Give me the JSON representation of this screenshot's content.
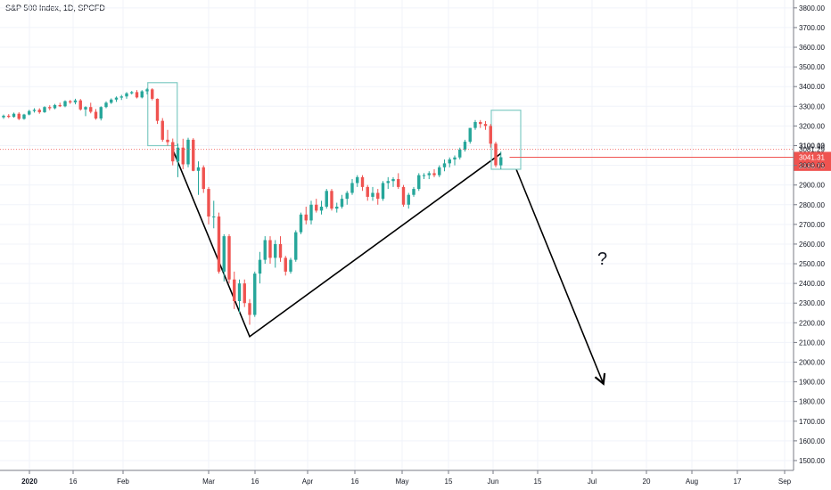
{
  "chart_data": {
    "type": "candlestick",
    "title": "S&P 500 Index, 1D, SPCFD",
    "ylim": [
      1450,
      3840
    ],
    "y_ticks": [
      1500,
      1600,
      1700,
      1800,
      1900,
      2000,
      2100,
      2200,
      2300,
      2400,
      2500,
      2600,
      2700,
      2800,
      2900,
      3000,
      3100,
      3200,
      3300,
      3400,
      3500,
      3600,
      3700,
      3800
    ],
    "y_tick_labels": [
      "1500.00",
      "1600.00",
      "1700.00",
      "1800.00",
      "1900.00",
      "2000.00",
      "2100.00",
      "2200.00",
      "2300.00",
      "2400.00",
      "2500.00",
      "2600.00",
      "2700.00",
      "2800.00",
      "2900.00",
      "3000.00",
      "3100.00",
      "3200.00",
      "3300.00",
      "3400.00",
      "3500.00",
      "3600.00",
      "3700.00",
      "3800.00"
    ],
    "x_labels": [
      "2020",
      "16",
      "Feb",
      "Mar",
      "16",
      "Apr",
      "16",
      "May",
      "15",
      "Jun",
      "15",
      "Jul",
      "20",
      "Aug",
      "17",
      "Sep"
    ],
    "grid": true,
    "up_color": "#26a69a",
    "down_color": "#ef5350",
    "price_lines": [
      {
        "value": 3081.29,
        "label": "3081.29",
        "color": "#ef5350",
        "style": "dotted"
      },
      {
        "value": 3041.31,
        "label": "3041.31",
        "color": "#ef5350",
        "style": "solid"
      },
      {
        "value": 2998.75,
        "label": "2998.75",
        "color": "#ef5350",
        "style": "tag"
      }
    ],
    "highlight_label": "3100.13",
    "annotation": "?",
    "candles": [
      [
        3244,
        3258,
        3236,
        3252
      ],
      [
        3252,
        3260,
        3240,
        3246
      ],
      [
        3246,
        3268,
        3242,
        3262
      ],
      [
        3262,
        3270,
        3230,
        3236
      ],
      [
        3236,
        3262,
        3232,
        3258
      ],
      [
        3258,
        3282,
        3254,
        3276
      ],
      [
        3276,
        3290,
        3268,
        3282
      ],
      [
        3282,
        3290,
        3262,
        3270
      ],
      [
        3270,
        3300,
        3266,
        3296
      ],
      [
        3296,
        3305,
        3280,
        3290
      ],
      [
        3290,
        3312,
        3285,
        3306
      ],
      [
        3306,
        3318,
        3296,
        3300
      ],
      [
        3300,
        3330,
        3295,
        3326
      ],
      [
        3326,
        3332,
        3312,
        3320
      ],
      [
        3320,
        3338,
        3310,
        3330
      ],
      [
        3330,
        3337,
        3278,
        3284
      ],
      [
        3284,
        3300,
        3250,
        3296
      ],
      [
        3296,
        3318,
        3264,
        3272
      ],
      [
        3272,
        3286,
        3232,
        3238
      ],
      [
        3238,
        3300,
        3228,
        3296
      ],
      [
        3296,
        3325,
        3290,
        3318
      ],
      [
        3318,
        3340,
        3312,
        3334
      ],
      [
        3334,
        3350,
        3322,
        3344
      ],
      [
        3344,
        3358,
        3332,
        3350
      ],
      [
        3350,
        3372,
        3338,
        3366
      ],
      [
        3366,
        3378,
        3360,
        3372
      ],
      [
        3372,
        3382,
        3340,
        3345
      ],
      [
        3345,
        3382,
        3340,
        3376
      ],
      [
        3376,
        3393,
        3360,
        3386
      ],
      [
        3386,
        3392,
        3330,
        3338
      ],
      [
        3338,
        3340,
        3210,
        3226
      ],
      [
        3226,
        3240,
        3120,
        3130
      ],
      [
        3130,
        3180,
        3100,
        3118
      ],
      [
        3118,
        3136,
        3000,
        3020
      ],
      [
        3020,
        3110,
        2940,
        3090
      ],
      [
        3090,
        3135,
        2980,
        3005
      ],
      [
        3005,
        3140,
        2990,
        3130
      ],
      [
        3130,
        3138,
        2970,
        2972
      ],
      [
        2972,
        3020,
        2850,
        2990
      ],
      [
        2990,
        3000,
        2860,
        2880
      ],
      [
        2880,
        2890,
        2700,
        2740
      ],
      [
        2740,
        2820,
        2680,
        2740
      ],
      [
        2740,
        2760,
        2450,
        2460
      ],
      [
        2460,
        2650,
        2410,
        2640
      ],
      [
        2640,
        2650,
        2400,
        2420
      ],
      [
        2420,
        2460,
        2270,
        2310
      ],
      [
        2310,
        2420,
        2250,
        2400
      ],
      [
        2400,
        2420,
        2280,
        2300
      ],
      [
        2300,
        2320,
        2190,
        2240
      ],
      [
        2240,
        2460,
        2230,
        2450
      ],
      [
        2450,
        2560,
        2400,
        2520
      ],
      [
        2520,
        2640,
        2500,
        2620
      ],
      [
        2620,
        2640,
        2500,
        2530
      ],
      [
        2530,
        2620,
        2480,
        2600
      ],
      [
        2600,
        2640,
        2510,
        2530
      ],
      [
        2530,
        2540,
        2440,
        2460
      ],
      [
        2460,
        2530,
        2450,
        2520
      ],
      [
        2520,
        2670,
        2510,
        2660
      ],
      [
        2660,
        2760,
        2650,
        2750
      ],
      [
        2750,
        2790,
        2700,
        2720
      ],
      [
        2720,
        2820,
        2700,
        2800
      ],
      [
        2800,
        2830,
        2760,
        2770
      ],
      [
        2770,
        2820,
        2750,
        2790
      ],
      [
        2790,
        2880,
        2780,
        2870
      ],
      [
        2870,
        2880,
        2770,
        2780
      ],
      [
        2780,
        2810,
        2760,
        2790
      ],
      [
        2790,
        2850,
        2780,
        2830
      ],
      [
        2830,
        2870,
        2800,
        2860
      ],
      [
        2860,
        2930,
        2850,
        2910
      ],
      [
        2910,
        2950,
        2890,
        2940
      ],
      [
        2940,
        2950,
        2870,
        2890
      ],
      [
        2890,
        2900,
        2820,
        2840
      ],
      [
        2840,
        2890,
        2820,
        2860
      ],
      [
        2860,
        2880,
        2800,
        2830
      ],
      [
        2830,
        2920,
        2820,
        2910
      ],
      [
        2910,
        2940,
        2880,
        2920
      ],
      [
        2920,
        2940,
        2890,
        2930
      ],
      [
        2930,
        2960,
        2880,
        2890
      ],
      [
        2890,
        2900,
        2790,
        2800
      ],
      [
        2800,
        2860,
        2780,
        2850
      ],
      [
        2850,
        2890,
        2840,
        2880
      ],
      [
        2880,
        2960,
        2870,
        2950
      ],
      [
        2950,
        2960,
        2930,
        2950
      ],
      [
        2950,
        2970,
        2930,
        2960
      ],
      [
        2960,
        2980,
        2940,
        2950
      ],
      [
        2950,
        3000,
        2940,
        2990
      ],
      [
        2990,
        3030,
        2970,
        3010
      ],
      [
        3010,
        3040,
        2990,
        3030
      ],
      [
        3030,
        3050,
        3000,
        3040
      ],
      [
        3040,
        3090,
        3030,
        3080
      ],
      [
        3080,
        3130,
        3070,
        3120
      ],
      [
        3120,
        3190,
        3110,
        3190
      ],
      [
        3190,
        3230,
        3180,
        3220
      ],
      [
        3220,
        3230,
        3190,
        3210
      ],
      [
        3210,
        3225,
        3180,
        3200
      ],
      [
        3200,
        3210,
        3090,
        3110
      ],
      [
        3110,
        3120,
        2990,
        3000
      ],
      [
        3000,
        3070,
        2980,
        3041
      ]
    ],
    "hand_drawn": {
      "v_shape": [
        [
          3080,
          33
        ],
        [
          2130,
          48
        ],
        [
          3060,
          97
        ]
      ],
      "forecast_arrow": [
        [
          2980,
          100
        ],
        [
          1890,
          117
        ]
      ],
      "boxes": [
        [
          29,
          33,
          3100,
          3420
        ],
        [
          96,
          100,
          2980,
          3280
        ]
      ]
    }
  }
}
